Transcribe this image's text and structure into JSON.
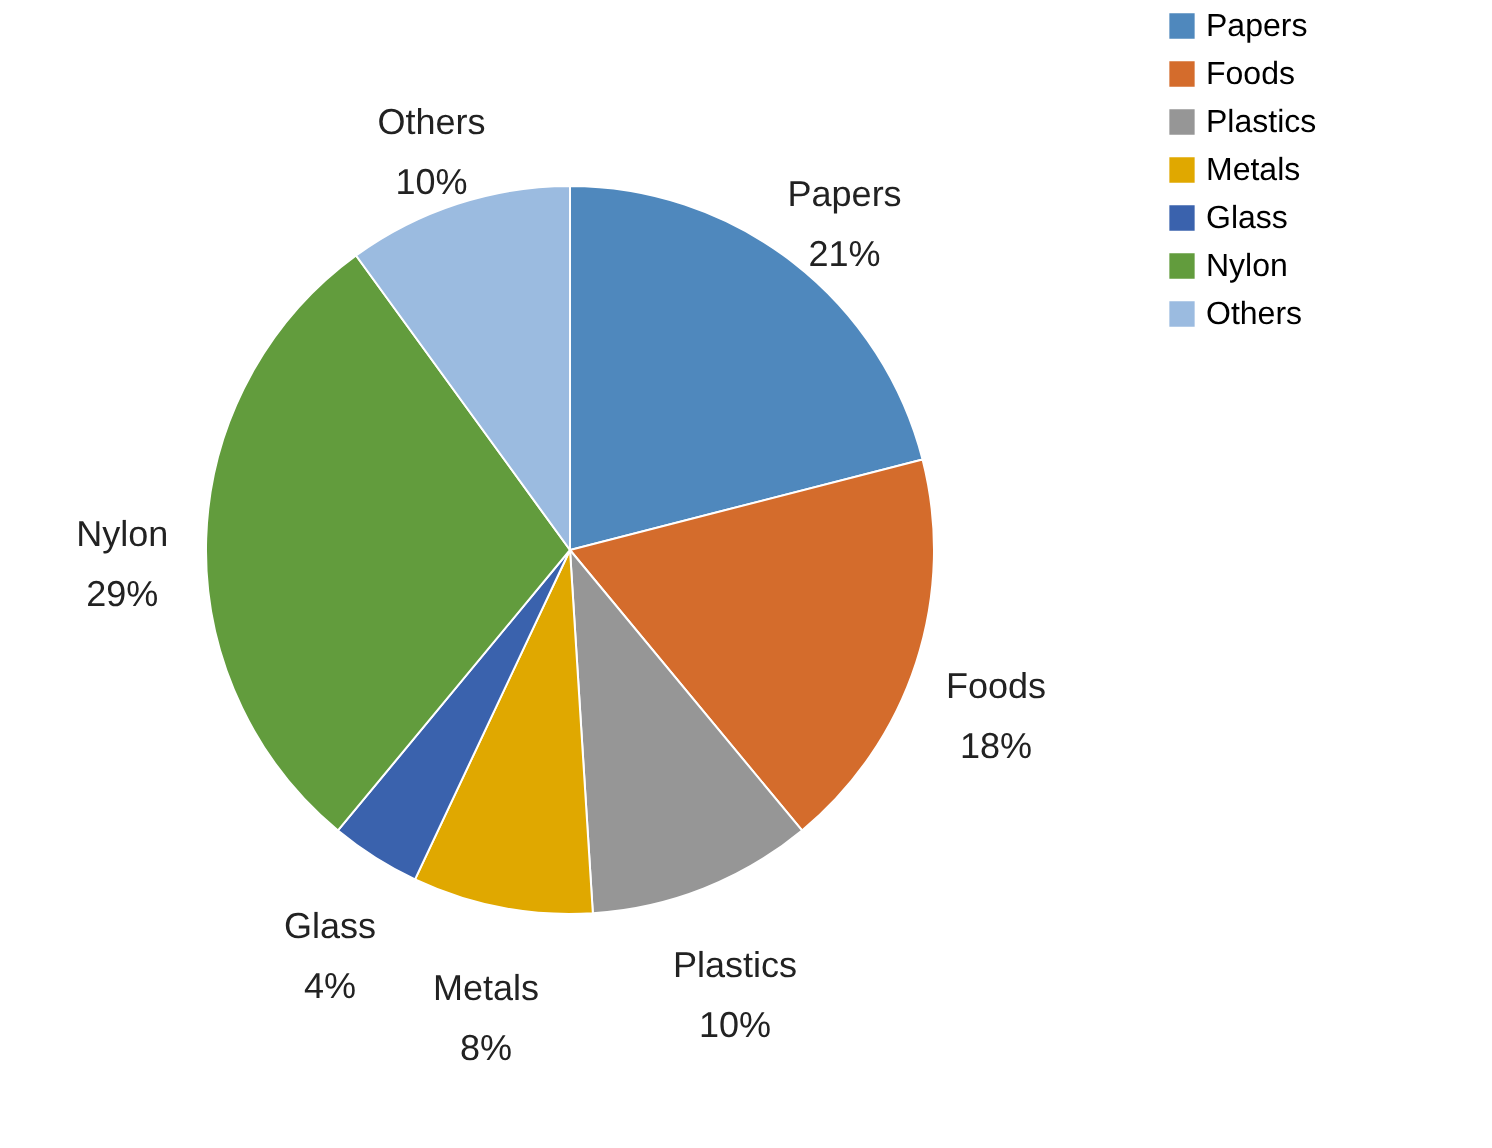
{
  "chart_data": {
    "type": "pie",
    "categories": [
      "Papers",
      "Foods",
      "Plastics",
      "Metals",
      "Glass",
      "Nylon",
      "Others"
    ],
    "values": [
      21,
      18,
      10,
      8,
      4,
      29,
      10
    ],
    "colors": [
      "#4f88bd",
      "#d46c2c",
      "#969696",
      "#e0a800",
      "#3a62ad",
      "#629c3d",
      "#9bbbe0"
    ],
    "value_labels": [
      "21%",
      "18%",
      "10%",
      "8%",
      "4%",
      "29%",
      "10%"
    ],
    "legend": "right"
  }
}
